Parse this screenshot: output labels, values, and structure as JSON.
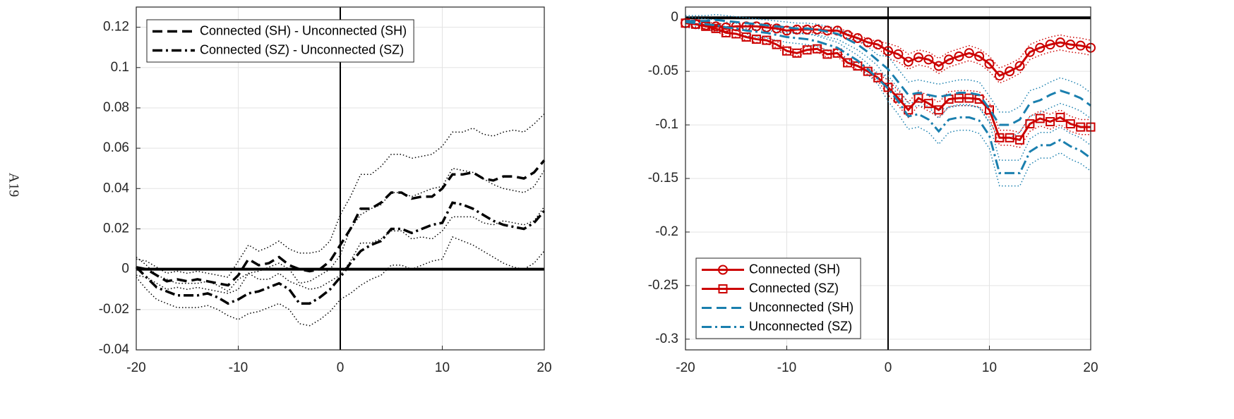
{
  "page_label": "A19",
  "chart_data": [
    {
      "type": "line",
      "x": [
        -20,
        -19,
        -18,
        -17,
        -16,
        -15,
        -14,
        -13,
        -12,
        -11,
        -10,
        -9,
        -8,
        -7,
        -6,
        -5,
        -4,
        -3,
        -2,
        -1,
        0,
        1,
        2,
        3,
        4,
        5,
        6,
        7,
        8,
        9,
        10,
        11,
        12,
        13,
        14,
        15,
        16,
        17,
        18,
        19,
        20
      ],
      "xlim": [
        -20,
        20
      ],
      "xticks": [
        -20,
        -10,
        0,
        10,
        20
      ],
      "ylim": [
        -0.04,
        0.13
      ],
      "yticks": [
        -0.04,
        -0.02,
        0,
        0.02,
        0.04,
        0.06,
        0.08,
        0.1,
        0.12
      ],
      "grid": true,
      "hline": 0,
      "vline": 0,
      "legend": "upper left",
      "series": [
        {
          "name": "Connected (SH) - Unconnected (SH)",
          "color": "#000000",
          "dash": "dashed",
          "values": [
            0.001,
            0.0,
            -0.003,
            -0.006,
            -0.005,
            -0.006,
            -0.005,
            -0.006,
            -0.007,
            -0.008,
            -0.003,
            0.005,
            0.002,
            0.003,
            0.006,
            0.002,
            0.0,
            -0.001,
            0.0,
            0.004,
            0.012,
            0.02,
            0.03,
            0.03,
            0.033,
            0.038,
            0.038,
            0.035,
            0.036,
            0.036,
            0.04,
            0.047,
            0.047,
            0.048,
            0.045,
            0.044,
            0.046,
            0.046,
            0.045,
            0.048,
            0.054
          ],
          "upper": [
            0.005,
            0.004,
            0.001,
            -0.002,
            -0.001,
            -0.002,
            -0.001,
            -0.002,
            -0.003,
            -0.004,
            0.004,
            0.012,
            0.009,
            0.011,
            0.014,
            0.01,
            0.008,
            0.008,
            0.009,
            0.014,
            0.027,
            0.036,
            0.047,
            0.047,
            0.051,
            0.057,
            0.057,
            0.055,
            0.056,
            0.057,
            0.061,
            0.068,
            0.068,
            0.07,
            0.067,
            0.066,
            0.068,
            0.069,
            0.068,
            0.072,
            0.077
          ],
          "lower": [
            -0.003,
            -0.004,
            -0.007,
            -0.01,
            -0.009,
            -0.01,
            -0.009,
            -0.01,
            -0.011,
            -0.012,
            -0.01,
            -0.002,
            -0.005,
            -0.005,
            -0.002,
            -0.006,
            -0.008,
            -0.01,
            -0.009,
            -0.006,
            -0.003,
            0.004,
            0.013,
            0.013,
            0.015,
            0.019,
            0.019,
            0.015,
            0.016,
            0.015,
            0.019,
            0.026,
            0.026,
            0.026,
            0.023,
            0.022,
            0.024,
            0.023,
            0.022,
            0.024,
            0.031
          ]
        },
        {
          "name": "Connected (SZ) - Unconnected (SZ)",
          "color": "#000000",
          "dash": "dashdot",
          "values": [
            0.001,
            -0.004,
            -0.009,
            -0.011,
            -0.013,
            -0.013,
            -0.013,
            -0.012,
            -0.014,
            -0.017,
            -0.015,
            -0.012,
            -0.011,
            -0.009,
            -0.007,
            -0.01,
            -0.017,
            -0.017,
            -0.014,
            -0.01,
            -0.004,
            0.003,
            0.009,
            0.012,
            0.014,
            0.02,
            0.02,
            0.018,
            0.02,
            0.022,
            0.023,
            0.033,
            0.032,
            0.03,
            0.027,
            0.024,
            0.022,
            0.021,
            0.02,
            0.023,
            0.029
          ],
          "upper": [
            0.006,
            0.002,
            -0.003,
            -0.005,
            -0.007,
            -0.007,
            -0.007,
            -0.006,
            -0.008,
            -0.011,
            -0.005,
            -0.002,
            -0.001,
            0.001,
            0.003,
            0.0,
            -0.007,
            -0.006,
            -0.003,
            0.0,
            0.007,
            0.02,
            0.027,
            0.03,
            0.032,
            0.038,
            0.038,
            0.036,
            0.038,
            0.04,
            0.041,
            0.05,
            0.049,
            0.048,
            0.045,
            0.042,
            0.04,
            0.039,
            0.038,
            0.041,
            0.049
          ],
          "lower": [
            -0.004,
            -0.01,
            -0.015,
            -0.017,
            -0.019,
            -0.019,
            -0.019,
            -0.018,
            -0.02,
            -0.023,
            -0.025,
            -0.022,
            -0.021,
            -0.019,
            -0.017,
            -0.02,
            -0.027,
            -0.028,
            -0.025,
            -0.021,
            -0.015,
            -0.012,
            -0.008,
            -0.005,
            -0.003,
            0.002,
            0.002,
            0.0,
            0.002,
            0.004,
            0.005,
            0.016,
            0.014,
            0.012,
            0.009,
            0.006,
            0.003,
            0.001,
            0.0,
            0.003,
            0.009
          ]
        }
      ]
    },
    {
      "type": "line",
      "x": [
        -20,
        -19,
        -18,
        -17,
        -16,
        -15,
        -14,
        -13,
        -12,
        -11,
        -10,
        -9,
        -8,
        -7,
        -6,
        -5,
        -4,
        -3,
        -2,
        -1,
        0,
        1,
        2,
        3,
        4,
        5,
        6,
        7,
        8,
        9,
        10,
        11,
        12,
        13,
        14,
        15,
        16,
        17,
        18,
        19,
        20
      ],
      "xlim": [
        -20,
        20
      ],
      "xticks": [
        -20,
        -10,
        0,
        10,
        20
      ],
      "ylim": [
        -0.31,
        0.01
      ],
      "yticks": [
        -0.3,
        -0.25,
        -0.2,
        -0.15,
        -0.1,
        -0.05,
        0
      ],
      "grid": true,
      "hline": 0,
      "vline": 0,
      "legend": "lower left",
      "series": [
        {
          "name": "Connected (SH)",
          "color": "#cc0000",
          "dash": "solid",
          "marker": "circle",
          "values": [
            -0.005,
            -0.006,
            -0.007,
            -0.008,
            -0.009,
            -0.008,
            -0.008,
            -0.008,
            -0.009,
            -0.01,
            -0.012,
            -0.011,
            -0.011,
            -0.011,
            -0.012,
            -0.012,
            -0.016,
            -0.019,
            -0.023,
            -0.025,
            -0.031,
            -0.034,
            -0.041,
            -0.037,
            -0.039,
            -0.045,
            -0.039,
            -0.036,
            -0.033,
            -0.036,
            -0.043,
            -0.054,
            -0.05,
            -0.045,
            -0.032,
            -0.028,
            -0.025,
            -0.023,
            -0.025,
            -0.026,
            -0.028
          ],
          "upper": [
            -0.002,
            -0.003,
            -0.004,
            -0.005,
            -0.006,
            -0.005,
            -0.005,
            -0.005,
            -0.006,
            -0.007,
            -0.009,
            -0.008,
            -0.008,
            -0.008,
            -0.009,
            -0.009,
            -0.013,
            -0.016,
            -0.02,
            -0.022,
            -0.024,
            -0.027,
            -0.034,
            -0.03,
            -0.032,
            -0.038,
            -0.032,
            -0.029,
            -0.026,
            -0.029,
            -0.036,
            -0.047,
            -0.043,
            -0.038,
            -0.025,
            -0.021,
            -0.018,
            -0.016,
            -0.018,
            -0.019,
            -0.021
          ],
          "lower": [
            -0.008,
            -0.009,
            -0.01,
            -0.011,
            -0.012,
            -0.011,
            -0.011,
            -0.011,
            -0.012,
            -0.013,
            -0.015,
            -0.014,
            -0.014,
            -0.014,
            -0.015,
            -0.015,
            -0.019,
            -0.022,
            -0.026,
            -0.028,
            -0.038,
            -0.041,
            -0.048,
            -0.044,
            -0.046,
            -0.052,
            -0.046,
            -0.043,
            -0.04,
            -0.043,
            -0.05,
            -0.061,
            -0.057,
            -0.052,
            -0.039,
            -0.035,
            -0.032,
            -0.03,
            -0.032,
            -0.033,
            -0.035
          ]
        },
        {
          "name": "Connected (SZ)",
          "color": "#cc0000",
          "dash": "solid",
          "marker": "square",
          "values": [
            -0.005,
            -0.006,
            -0.008,
            -0.01,
            -0.014,
            -0.015,
            -0.018,
            -0.02,
            -0.021,
            -0.025,
            -0.031,
            -0.033,
            -0.03,
            -0.029,
            -0.034,
            -0.033,
            -0.042,
            -0.045,
            -0.05,
            -0.056,
            -0.065,
            -0.075,
            -0.086,
            -0.075,
            -0.08,
            -0.086,
            -0.076,
            -0.075,
            -0.075,
            -0.076,
            -0.086,
            -0.112,
            -0.112,
            -0.114,
            -0.099,
            -0.094,
            -0.097,
            -0.093,
            -0.099,
            -0.102,
            -0.102
          ],
          "upper": [
            -0.002,
            -0.003,
            -0.005,
            -0.007,
            -0.011,
            -0.012,
            -0.015,
            -0.017,
            -0.018,
            -0.022,
            -0.028,
            -0.03,
            -0.027,
            -0.026,
            -0.031,
            -0.03,
            -0.039,
            -0.042,
            -0.047,
            -0.053,
            -0.058,
            -0.068,
            -0.079,
            -0.068,
            -0.073,
            -0.079,
            -0.069,
            -0.068,
            -0.068,
            -0.069,
            -0.079,
            -0.105,
            -0.105,
            -0.107,
            -0.092,
            -0.087,
            -0.09,
            -0.086,
            -0.092,
            -0.095,
            -0.095
          ],
          "lower": [
            -0.008,
            -0.009,
            -0.011,
            -0.013,
            -0.017,
            -0.018,
            -0.021,
            -0.023,
            -0.024,
            -0.028,
            -0.034,
            -0.036,
            -0.033,
            -0.032,
            -0.037,
            -0.036,
            -0.045,
            -0.048,
            -0.053,
            -0.059,
            -0.072,
            -0.082,
            -0.093,
            -0.082,
            -0.087,
            -0.093,
            -0.083,
            -0.082,
            -0.082,
            -0.083,
            -0.093,
            -0.119,
            -0.119,
            -0.121,
            -0.106,
            -0.101,
            -0.104,
            -0.1,
            -0.106,
            -0.109,
            -0.109
          ]
        },
        {
          "name": "Unconnected (SH)",
          "color": "#1a7fae",
          "dash": "dashed",
          "values": [
            -0.003,
            -0.003,
            -0.003,
            -0.002,
            -0.003,
            -0.004,
            -0.005,
            -0.006,
            -0.007,
            -0.008,
            -0.009,
            -0.01,
            -0.01,
            -0.011,
            -0.013,
            -0.015,
            -0.02,
            -0.025,
            -0.032,
            -0.04,
            -0.048,
            -0.06,
            -0.072,
            -0.07,
            -0.072,
            -0.074,
            -0.072,
            -0.07,
            -0.07,
            -0.072,
            -0.085,
            -0.1,
            -0.1,
            -0.095,
            -0.08,
            -0.077,
            -0.072,
            -0.068,
            -0.071,
            -0.075,
            -0.082
          ],
          "upper": [
            0.002,
            0.002,
            0.002,
            0.003,
            0.002,
            0.001,
            0.0,
            -0.001,
            -0.002,
            -0.003,
            -0.004,
            -0.005,
            -0.005,
            -0.006,
            -0.008,
            -0.01,
            -0.015,
            -0.02,
            -0.027,
            -0.035,
            -0.036,
            -0.048,
            -0.06,
            -0.058,
            -0.06,
            -0.062,
            -0.06,
            -0.058,
            -0.058,
            -0.06,
            -0.073,
            -0.088,
            -0.088,
            -0.083,
            -0.068,
            -0.065,
            -0.06,
            -0.056,
            -0.059,
            -0.063,
            -0.07
          ],
          "lower": [
            -0.008,
            -0.008,
            -0.008,
            -0.007,
            -0.008,
            -0.009,
            -0.01,
            -0.011,
            -0.012,
            -0.013,
            -0.014,
            -0.015,
            -0.015,
            -0.016,
            -0.018,
            -0.02,
            -0.025,
            -0.03,
            -0.037,
            -0.045,
            -0.06,
            -0.072,
            -0.084,
            -0.082,
            -0.084,
            -0.086,
            -0.084,
            -0.082,
            -0.082,
            -0.084,
            -0.097,
            -0.112,
            -0.112,
            -0.107,
            -0.092,
            -0.089,
            -0.084,
            -0.08,
            -0.083,
            -0.087,
            -0.094
          ]
        },
        {
          "name": "Unconnected (SZ)",
          "color": "#1a7fae",
          "dash": "dashdot",
          "values": [
            -0.004,
            -0.005,
            -0.006,
            -0.007,
            -0.009,
            -0.01,
            -0.012,
            -0.013,
            -0.014,
            -0.016,
            -0.018,
            -0.019,
            -0.02,
            -0.022,
            -0.025,
            -0.028,
            -0.034,
            -0.04,
            -0.048,
            -0.057,
            -0.066,
            -0.078,
            -0.092,
            -0.09,
            -0.095,
            -0.106,
            -0.095,
            -0.093,
            -0.093,
            -0.096,
            -0.11,
            -0.145,
            -0.145,
            -0.145,
            -0.125,
            -0.119,
            -0.119,
            -0.114,
            -0.12,
            -0.124,
            -0.131
          ],
          "upper": [
            0.001,
            0.0,
            -0.001,
            -0.002,
            -0.004,
            -0.005,
            -0.007,
            -0.008,
            -0.009,
            -0.011,
            -0.013,
            -0.014,
            -0.015,
            -0.017,
            -0.02,
            -0.023,
            -0.029,
            -0.035,
            -0.043,
            -0.052,
            -0.054,
            -0.066,
            -0.08,
            -0.078,
            -0.083,
            -0.094,
            -0.083,
            -0.081,
            -0.081,
            -0.084,
            -0.098,
            -0.133,
            -0.133,
            -0.133,
            -0.113,
            -0.107,
            -0.107,
            -0.102,
            -0.108,
            -0.112,
            -0.119
          ],
          "lower": [
            -0.009,
            -0.01,
            -0.011,
            -0.012,
            -0.014,
            -0.015,
            -0.017,
            -0.018,
            -0.019,
            -0.021,
            -0.023,
            -0.024,
            -0.025,
            -0.027,
            -0.03,
            -0.033,
            -0.039,
            -0.045,
            -0.053,
            -0.062,
            -0.078,
            -0.09,
            -0.104,
            -0.102,
            -0.107,
            -0.118,
            -0.107,
            -0.105,
            -0.105,
            -0.108,
            -0.122,
            -0.157,
            -0.157,
            -0.157,
            -0.137,
            -0.131,
            -0.131,
            -0.126,
            -0.132,
            -0.136,
            -0.143
          ]
        }
      ]
    }
  ]
}
